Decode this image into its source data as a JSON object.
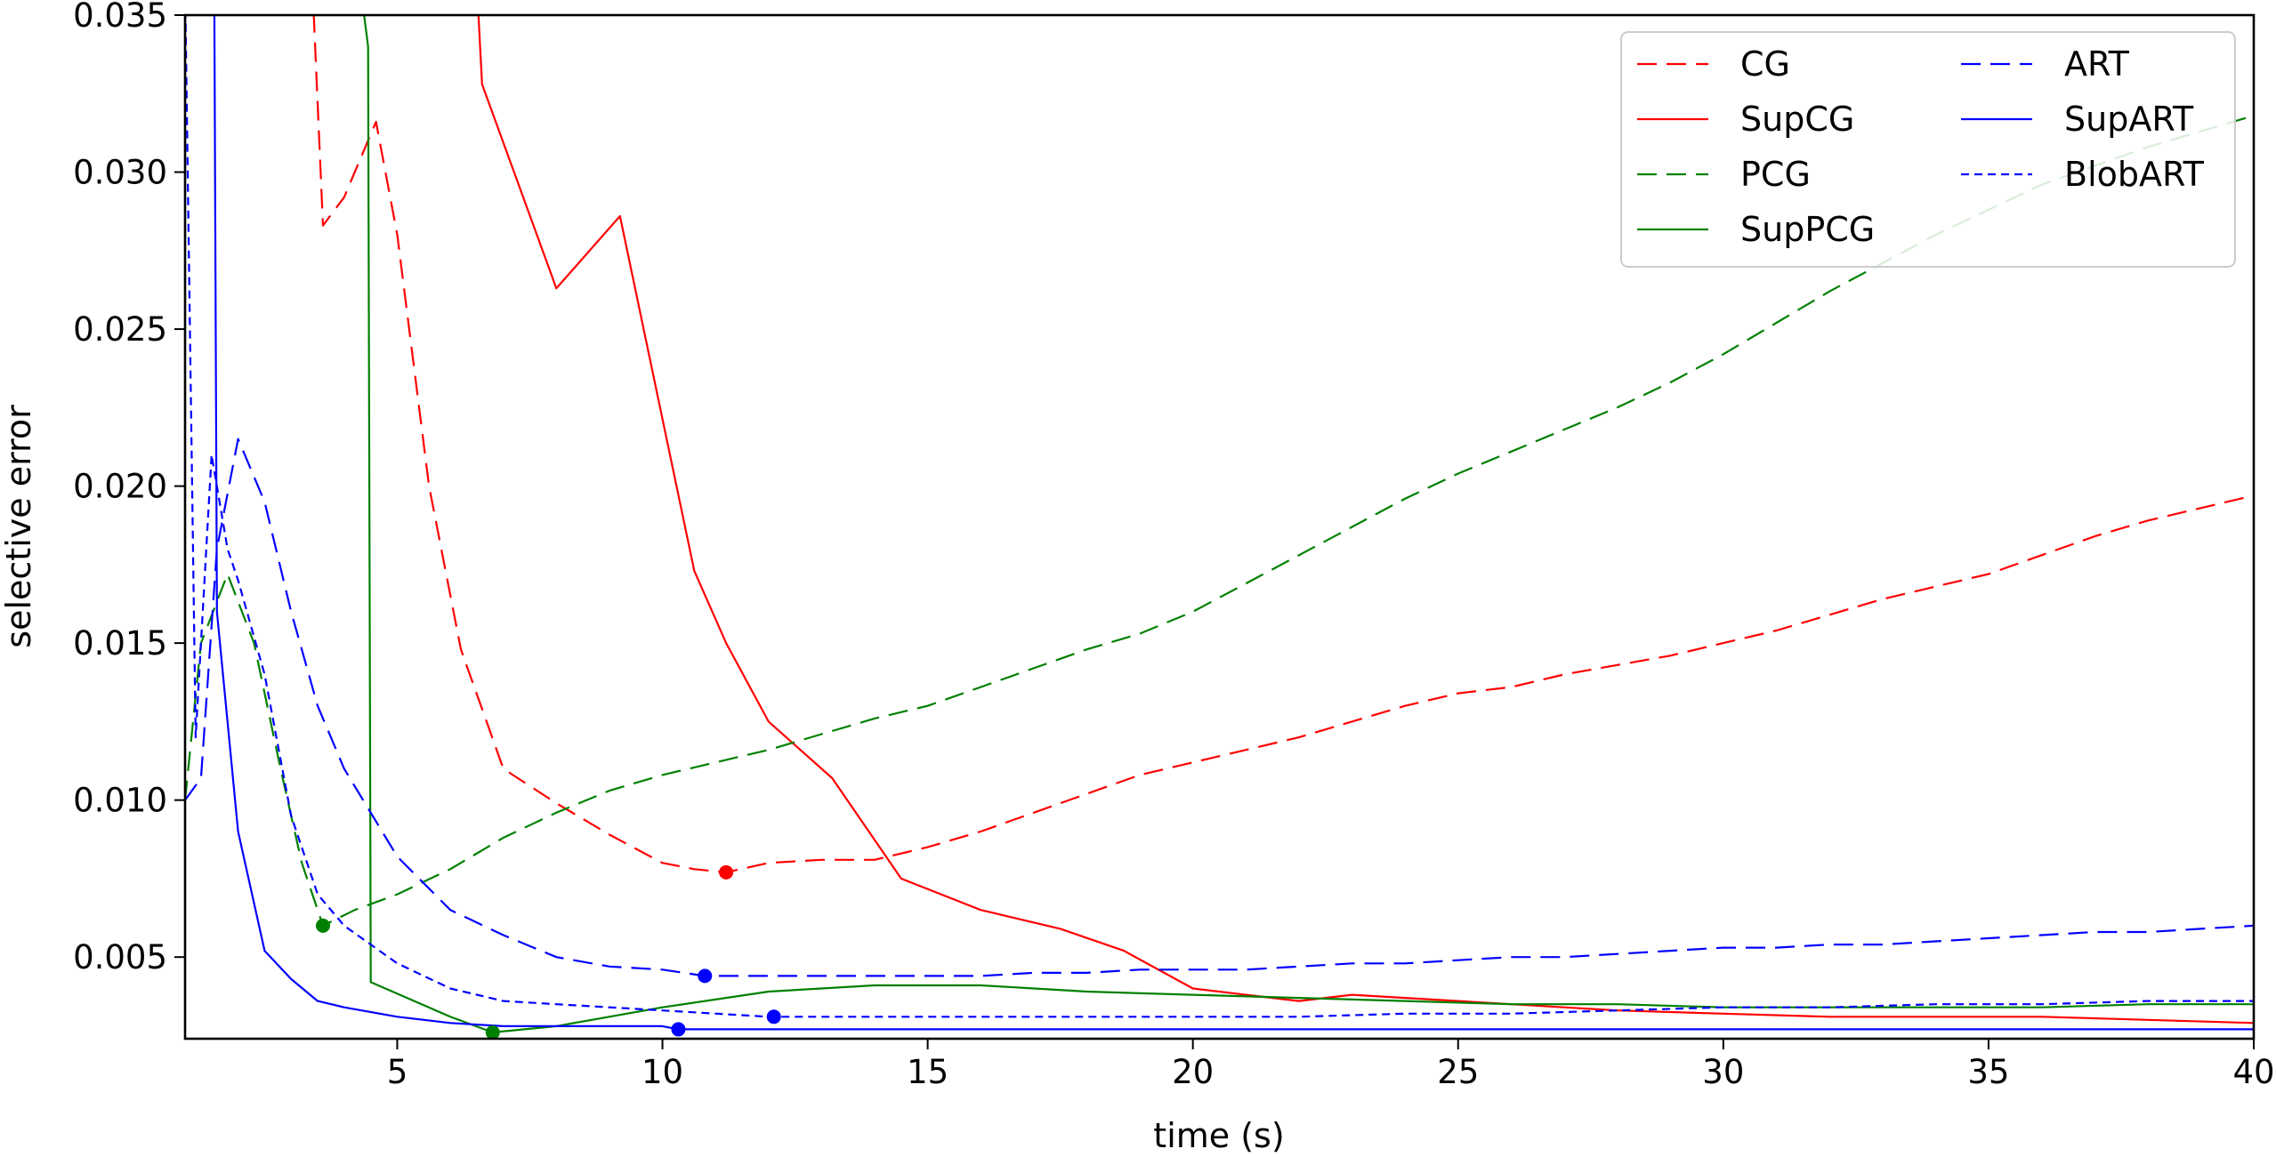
{
  "chart_data": {
    "type": "line",
    "title": "",
    "xlabel": "time (s)",
    "ylabel": "selective error",
    "xlim": [
      1,
      40
    ],
    "ylim": [
      0.0024,
      0.035
    ],
    "xticks": [
      5,
      10,
      15,
      20,
      25,
      30,
      35,
      40
    ],
    "xtick_labels": [
      "5",
      "10",
      "15",
      "20",
      "25",
      "30",
      "35",
      "40"
    ],
    "yticks": [
      0.005,
      0.01,
      0.015,
      0.02,
      0.025,
      0.03,
      0.035
    ],
    "ytick_labels": [
      "0.005",
      "0.010",
      "0.015",
      "0.020",
      "0.025",
      "0.030",
      "0.035"
    ],
    "grid": false,
    "legend_position": "top-right",
    "legend_columns": 2,
    "series": [
      {
        "name": "CG",
        "color": "#ff0000",
        "style": "dashed",
        "x": [
          3.4,
          3.6,
          4.0,
          4.6,
          5.0,
          5.6,
          6.2,
          7.0,
          8.0,
          9.0,
          10.0,
          10.6,
          11.2,
          12.0,
          13.0,
          14.0,
          15.0,
          16.0,
          17.0,
          18.0,
          19.0,
          20.0,
          21.0,
          22.0,
          23.0,
          24.0,
          25.0,
          26.0,
          27.0,
          28.0,
          29.0,
          30.0,
          31.0,
          32.0,
          33.0,
          34.0,
          35.0,
          36.0,
          37.0,
          38.0,
          39.0,
          40.0
        ],
        "y": [
          0.036,
          0.0283,
          0.0292,
          0.0316,
          0.028,
          0.02,
          0.0148,
          0.011,
          0.0099,
          0.0089,
          0.008,
          0.0078,
          0.0077,
          0.008,
          0.0081,
          0.0081,
          0.0085,
          0.009,
          0.0096,
          0.0102,
          0.0108,
          0.0112,
          0.0116,
          0.012,
          0.0125,
          0.013,
          0.0134,
          0.0136,
          0.014,
          0.0143,
          0.0146,
          0.015,
          0.0154,
          0.0159,
          0.0164,
          0.0168,
          0.0172,
          0.0178,
          0.0184,
          0.0189,
          0.0193,
          0.0197
        ],
        "marker": {
          "x": 11.2,
          "y": 0.0077
        }
      },
      {
        "name": "SupCG",
        "color": "#ff0000",
        "style": "solid",
        "x": [
          6.5,
          6.6,
          8.0,
          9.2,
          10.6,
          11.2,
          12.0,
          13.2,
          14.5,
          16.0,
          17.5,
          18.7,
          20.0,
          21.0,
          22.0,
          23.0,
          24.0,
          25.0,
          26.0,
          28.0,
          30.0,
          32.0,
          34.0,
          36.0,
          38.0,
          40.0
        ],
        "y": [
          0.036,
          0.0328,
          0.0263,
          0.0286,
          0.0173,
          0.015,
          0.0125,
          0.0107,
          0.0075,
          0.0065,
          0.0059,
          0.0052,
          0.004,
          0.0038,
          0.0036,
          0.0038,
          0.0037,
          0.0036,
          0.0035,
          0.0033,
          0.0032,
          0.0031,
          0.0031,
          0.0031,
          0.003,
          0.0029
        ],
        "marker": null
      },
      {
        "name": "PCG",
        "color": "#008000",
        "style": "dashed",
        "x": [
          1.0,
          1.3,
          1.8,
          2.3,
          2.8,
          3.2,
          3.6,
          4.2,
          5.0,
          6.0,
          7.0,
          8.0,
          9.0,
          10.0,
          11.0,
          12.0,
          13.0,
          14.0,
          15.0,
          16.0,
          17.0,
          18.0,
          19.0,
          20.0,
          21.0,
          22.0,
          23.0,
          24.0,
          25.0,
          26.0,
          27.0,
          28.0,
          29.0,
          30.0,
          31.0,
          32.0,
          33.0,
          34.0,
          35.0,
          36.0,
          37.0,
          38.0,
          39.0,
          40.0
        ],
        "y": [
          0.01,
          0.015,
          0.0172,
          0.015,
          0.011,
          0.008,
          0.006,
          0.0065,
          0.007,
          0.0078,
          0.0088,
          0.0096,
          0.0103,
          0.0108,
          0.0112,
          0.0116,
          0.0121,
          0.0126,
          0.013,
          0.0136,
          0.0142,
          0.0148,
          0.0153,
          0.016,
          0.0169,
          0.0178,
          0.0187,
          0.0196,
          0.0204,
          0.0211,
          0.0218,
          0.0225,
          0.0233,
          0.0242,
          0.0252,
          0.0262,
          0.0271,
          0.028,
          0.0288,
          0.0296,
          0.0302,
          0.0308,
          0.0313,
          0.0318
        ],
        "marker": {
          "x": 3.6,
          "y": 0.006
        }
      },
      {
        "name": "SupPCG",
        "color": "#008000",
        "style": "solid",
        "x": [
          4.3,
          4.45,
          4.5,
          6.0,
          6.8,
          8.0,
          10.0,
          12.0,
          14.0,
          16.0,
          18.0,
          20.0,
          22.0,
          24.0,
          26.0,
          28.0,
          30.0,
          32.0,
          34.0,
          36.0,
          38.0,
          40.0
        ],
        "y": [
          0.036,
          0.034,
          0.0042,
          0.0031,
          0.0026,
          0.0028,
          0.0034,
          0.0039,
          0.0041,
          0.0041,
          0.0039,
          0.0038,
          0.0037,
          0.0036,
          0.0035,
          0.0035,
          0.0034,
          0.0034,
          0.0034,
          0.0034,
          0.0035,
          0.0035
        ],
        "marker": {
          "x": 6.8,
          "y": 0.0026
        }
      },
      {
        "name": "ART",
        "color": "#0000ff",
        "style": "dashed",
        "x": [
          1.0,
          1.3,
          1.6,
          2.0,
          2.5,
          3.0,
          3.5,
          4.0,
          5.0,
          6.0,
          7.0,
          8.0,
          9.0,
          10.0,
          10.8,
          12.0,
          14.0,
          16.0,
          17.0,
          18.0,
          19.0,
          20.0,
          21.0,
          22.0,
          23.0,
          24.0,
          25.0,
          26.0,
          27.0,
          28.0,
          29.0,
          30.0,
          31.0,
          32.0,
          33.0,
          34.0,
          35.0,
          36.0,
          37.0,
          38.0,
          39.0,
          40.0
        ],
        "y": [
          0.01,
          0.0107,
          0.018,
          0.0215,
          0.0195,
          0.016,
          0.013,
          0.011,
          0.0082,
          0.0065,
          0.0057,
          0.005,
          0.0047,
          0.0046,
          0.0044,
          0.0044,
          0.0044,
          0.0044,
          0.0045,
          0.0045,
          0.0046,
          0.0046,
          0.0046,
          0.0047,
          0.0048,
          0.0048,
          0.0049,
          0.005,
          0.005,
          0.0051,
          0.0052,
          0.0053,
          0.0053,
          0.0054,
          0.0054,
          0.0055,
          0.0056,
          0.0057,
          0.0058,
          0.0058,
          0.0059,
          0.006
        ],
        "marker": {
          "x": 10.8,
          "y": 0.0044
        }
      },
      {
        "name": "SupART",
        "color": "#0000ff",
        "style": "solid",
        "x": [
          1.55,
          1.6,
          2.0,
          2.5,
          3.0,
          3.5,
          4.0,
          5.0,
          6.0,
          7.0,
          8.0,
          9.0,
          10.0,
          10.3,
          12.0,
          15.0,
          20.0,
          25.0,
          30.0,
          35.0,
          40.0
        ],
        "y": [
          0.036,
          0.016,
          0.009,
          0.0052,
          0.0043,
          0.0036,
          0.0034,
          0.0031,
          0.0029,
          0.0028,
          0.0028,
          0.0028,
          0.0028,
          0.0027,
          0.0027,
          0.0027,
          0.0027,
          0.0027,
          0.0027,
          0.0027,
          0.0027
        ],
        "marker": {
          "x": 10.3,
          "y": 0.0027
        }
      },
      {
        "name": "BlobART",
        "color": "#0000ff",
        "style": "dotted",
        "x": [
          1.0,
          1.2,
          1.5,
          1.8,
          2.0,
          2.5,
          3.0,
          3.5,
          4.0,
          5.0,
          6.0,
          7.0,
          8.0,
          10.0,
          12.0,
          14.0,
          16.0,
          18.0,
          20.0,
          22.0,
          24.0,
          26.0,
          28.0,
          30.0,
          32.0,
          34.0,
          36.0,
          38.0,
          40.0
        ],
        "y": [
          0.036,
          0.012,
          0.021,
          0.018,
          0.017,
          0.014,
          0.0095,
          0.007,
          0.006,
          0.0048,
          0.004,
          0.0036,
          0.0035,
          0.0033,
          0.0031,
          0.0031,
          0.0031,
          0.0031,
          0.0031,
          0.0031,
          0.0032,
          0.0032,
          0.0033,
          0.0034,
          0.0034,
          0.0035,
          0.0035,
          0.0036,
          0.0036
        ],
        "marker": {
          "x": 12.1,
          "y": 0.0031
        }
      }
    ]
  }
}
